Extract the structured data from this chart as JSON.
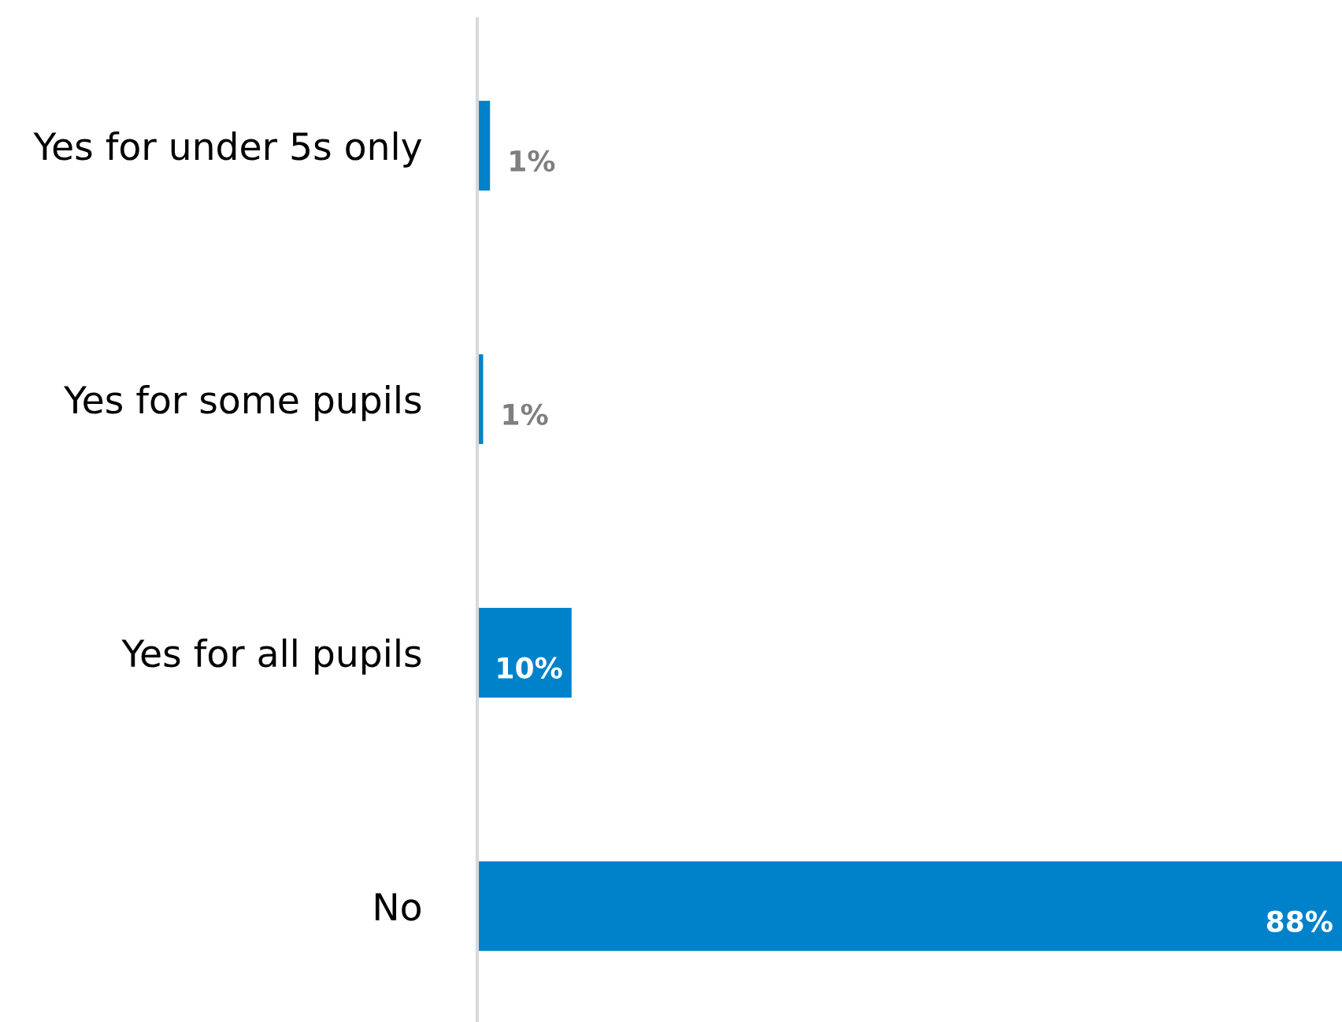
{
  "chart_data": {
    "type": "bar",
    "orientation": "horizontal",
    "categories": [
      "Yes for under 5s only",
      "Yes for some pupils",
      "Yes for all pupils",
      "No"
    ],
    "values": [
      1.3,
      0.6,
      9.6,
      88
    ],
    "value_labels": [
      "1%",
      "1%",
      "10%",
      "88%"
    ],
    "color": "#0082ca",
    "xlim": [
      0,
      88
    ],
    "tick_labels": "y",
    "grid": false,
    "legend": false
  }
}
